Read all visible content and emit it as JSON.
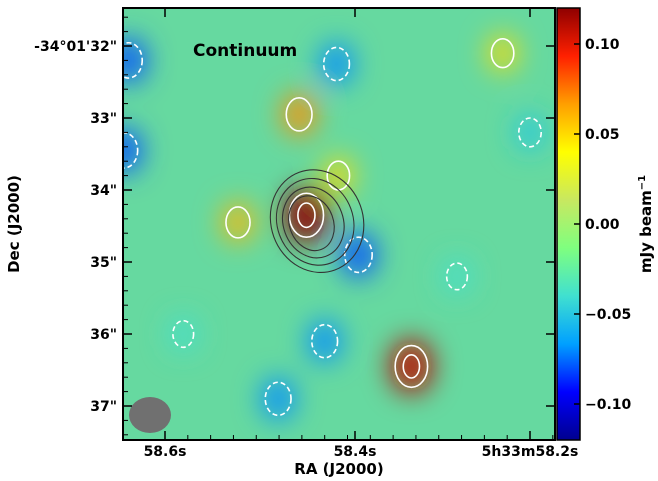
{
  "chart_data": {
    "type": "heatmap",
    "title": "",
    "panel_label": "Continuum",
    "xlabel": "RA (J2000)",
    "ylabel": "Dec (J2000)",
    "colorbar_label": "mJy beam",
    "colorbar_label_exponent": "−1",
    "x_ticks": [
      "58.6s",
      "58.4s",
      "5h33m58.2s"
    ],
    "y_ticks": [
      "-34°01'32\"",
      "33\"",
      "34\"",
      "35\"",
      "36\"",
      "37\""
    ],
    "colorbar_ticks": [
      "0.10",
      "0.05",
      "0.00",
      "−0.05",
      "−0.10"
    ],
    "colorbar_tick_values": [
      0.1,
      0.05,
      0.0,
      -0.05,
      -0.1
    ],
    "colorbar_range": [
      -0.12,
      0.12
    ],
    "colormap": "jet",
    "colormap_stops": [
      "#00008f",
      "#0000ff",
      "#00a0ff",
      "#40e0d0",
      "#7fff7f",
      "#c8e860",
      "#ffff00",
      "#ff9f00",
      "#ff2000",
      "#8f0000"
    ],
    "background_level_color": "#66d9a0",
    "contour_white_color": "#ffffff",
    "contour_black_color": "#333333",
    "beam_color": "#707070",
    "sources": [
      {
        "x": 58.445,
        "y": 34.35,
        "value": 0.12
      },
      {
        "x": 58.453,
        "y": 32.95,
        "value": 0.07
      },
      {
        "x": 58.33,
        "y": 36.45,
        "value": 0.11
      },
      {
        "x": 58.52,
        "y": 34.45,
        "value": 0.06
      },
      {
        "x": 58.41,
        "y": 33.8,
        "value": 0.05
      },
      {
        "x": 58.23,
        "y": 32.1,
        "value": 0.05
      },
      {
        "x": 58.64,
        "y": 32.2,
        "value": -0.08
      },
      {
        "x": 58.645,
        "y": 33.45,
        "value": -0.08
      },
      {
        "x": 58.412,
        "y": 32.25,
        "value": -0.07
      },
      {
        "x": 58.388,
        "y": 34.9,
        "value": -0.08
      },
      {
        "x": 58.425,
        "y": 36.1,
        "value": -0.07
      },
      {
        "x": 58.476,
        "y": 36.9,
        "value": -0.07
      },
      {
        "x": 58.28,
        "y": 35.2,
        "value": -0.04
      },
      {
        "x": 58.2,
        "y": 33.2,
        "value": -0.05
      },
      {
        "x": 58.58,
        "y": 36.0,
        "value": -0.04
      }
    ]
  }
}
